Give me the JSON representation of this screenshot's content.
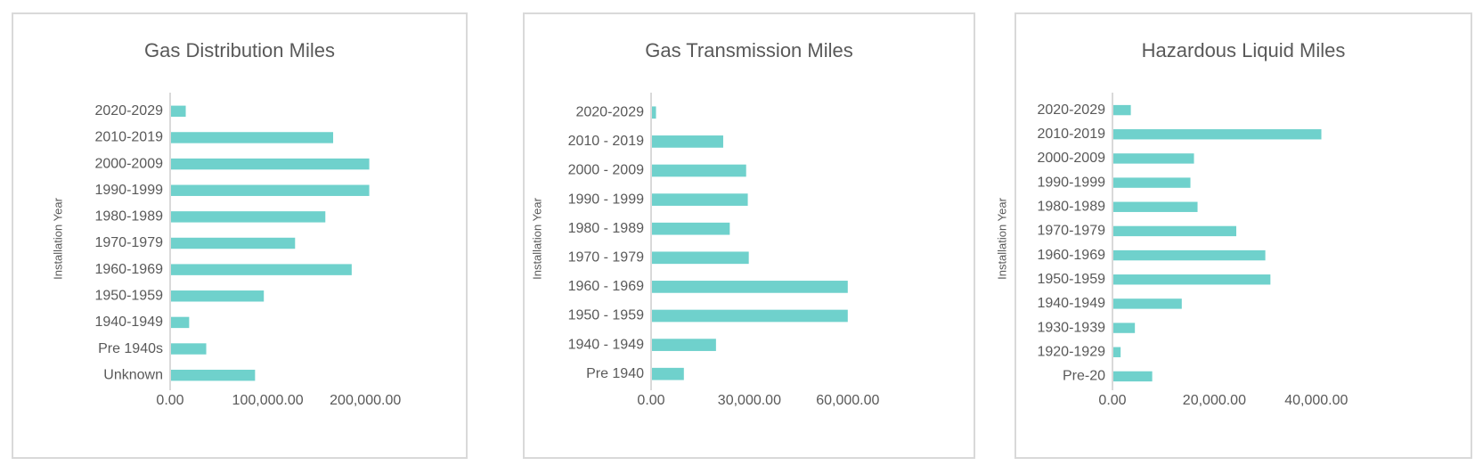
{
  "colors": {
    "bar": "#6fd1cc",
    "axis": "#d9d9d9",
    "text": "#595959",
    "border": "#d9d9d9"
  },
  "chart_data": [
    {
      "type": "bar",
      "orientation": "horizontal",
      "title": "Gas Distribution Miles",
      "ylabel": "Installation Year",
      "xlabel": "",
      "categories": [
        "2020-2029",
        "2010-2019",
        "2000-2009",
        "1990-1999",
        "1980-1989",
        "1970-1979",
        "1960-1969",
        "1950-1959",
        "1940-1949",
        "Pre 1940s",
        "Unknown"
      ],
      "values": [
        16000,
        167000,
        204000,
        204000,
        159000,
        128000,
        186000,
        96000,
        19500,
        37000,
        87000
      ],
      "xlim": [
        0,
        250000
      ],
      "tick_values": [
        0,
        100000,
        200000
      ],
      "tick_labels": [
        "0.00",
        "100,000.00",
        "200,000.00"
      ],
      "grid": false,
      "legend": "none"
    },
    {
      "type": "bar",
      "orientation": "horizontal",
      "title": "Gas Transmission Miles",
      "ylabel": "Installation Year",
      "xlabel": "",
      "categories": [
        "2020-2029",
        "2010 - 2019",
        "2000 - 2009",
        "1990 - 1999",
        "1980 - 1989",
        "1970 - 1979",
        "1960 - 1969",
        "1950 - 1959",
        "1940 - 1949",
        "Pre 1940"
      ],
      "values": [
        1500,
        22000,
        29000,
        29500,
        24000,
        29800,
        60000,
        60000,
        19800,
        10000
      ],
      "xlim": [
        0,
        75000
      ],
      "tick_values": [
        0,
        30000,
        60000
      ],
      "tick_labels": [
        "0.00",
        "30,000.00",
        "60,000.00"
      ],
      "grid": false,
      "legend": "none"
    },
    {
      "type": "bar",
      "orientation": "horizontal",
      "title": "Hazardous Liquid Miles",
      "ylabel": "Installation Year",
      "xlabel": "",
      "categories": [
        "2020-2029",
        "2010-2019",
        "2000-2009",
        "1990-1999",
        "1980-1989",
        "1970-1979",
        "1960-1969",
        "1950-1959",
        "1940-1949",
        "1930-1939",
        "1920-1929",
        "Pre-20"
      ],
      "values": [
        3600,
        41000,
        16000,
        15300,
        16700,
        24300,
        30000,
        31000,
        13600,
        4400,
        1600,
        7800
      ],
      "xlim": [
        0,
        50000
      ],
      "tick_values": [
        0,
        20000,
        40000
      ],
      "tick_labels": [
        "0.00",
        "20,000.00",
        "40,000.00"
      ],
      "grid": false,
      "legend": "none"
    }
  ]
}
